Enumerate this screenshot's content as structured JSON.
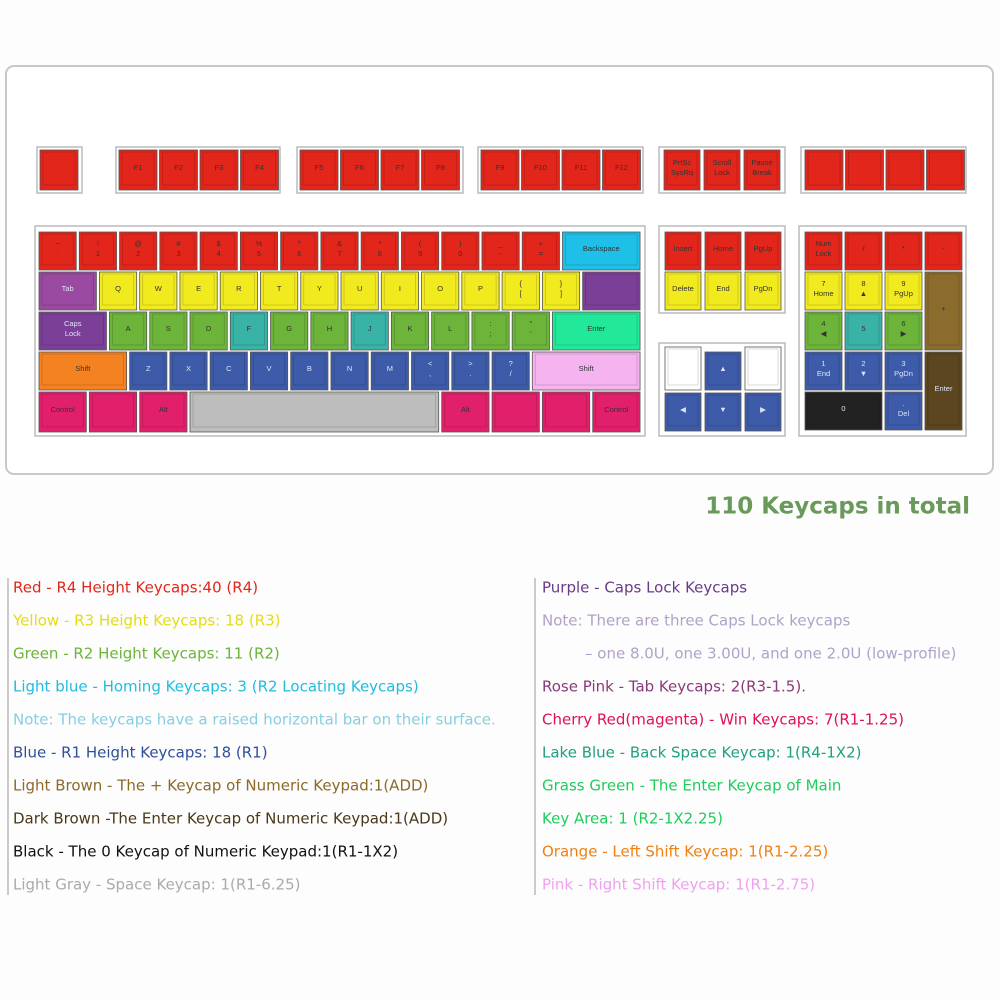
{
  "keyboard": {
    "function_keys": [
      [],
      [
        "F1"
      ],
      [
        "F2"
      ],
      [
        "F3"
      ],
      [
        "F4"
      ],
      [
        "F5"
      ],
      [
        "F6"
      ],
      [
        "F7"
      ],
      [
        "F8"
      ],
      [
        "F9"
      ],
      [
        "F10"
      ],
      [
        "F11"
      ],
      [
        "F12"
      ],
      [
        "PrtSc",
        "SysRq"
      ],
      [
        "Scroll",
        "Lock"
      ],
      [
        "Pause",
        "Break"
      ],
      [],
      [],
      [],
      []
    ],
    "main": [
      [
        [
          "~",
          "`"
        ],
        [
          "!",
          "1"
        ],
        [
          "@",
          "2"
        ],
        [
          "#",
          "3"
        ],
        [
          "$",
          "4"
        ],
        [
          "%",
          "5"
        ],
        [
          "^",
          "6"
        ],
        [
          "&",
          "7"
        ],
        [
          "*",
          "8"
        ],
        [
          "(",
          "9"
        ],
        [
          ")",
          "0"
        ],
        [
          "_",
          "-"
        ],
        [
          "+",
          "="
        ],
        [
          "Backspace"
        ]
      ],
      [
        [
          "Tab"
        ],
        [
          "Q"
        ],
        [
          "W"
        ],
        [
          "E"
        ],
        [
          "R"
        ],
        [
          "T"
        ],
        [
          "Y"
        ],
        [
          "U"
        ],
        [
          "I"
        ],
        [
          "O"
        ],
        [
          "P"
        ],
        [
          "{",
          "["
        ],
        [
          "}",
          "]"
        ],
        []
      ],
      [
        [
          "Caps",
          "Lock"
        ],
        [
          "A"
        ],
        [
          "S"
        ],
        [
          "D"
        ],
        [
          "F"
        ],
        [
          "G"
        ],
        [
          "H"
        ],
        [
          "J"
        ],
        [
          "K"
        ],
        [
          "L"
        ],
        [
          ":",
          ";"
        ],
        [
          "\"",
          "'"
        ],
        [
          "Enter"
        ]
      ],
      [
        [
          "Shift"
        ],
        [
          "Z"
        ],
        [
          "X"
        ],
        [
          "C"
        ],
        [
          "V"
        ],
        [
          "B"
        ],
        [
          "N"
        ],
        [
          "M"
        ],
        [
          "<",
          ","
        ],
        [
          ">",
          "."
        ],
        [
          "?",
          "/"
        ],
        [
          "Shift"
        ]
      ],
      [
        [
          "Control"
        ],
        [],
        [
          "Alt"
        ],
        [],
        [
          "Alt"
        ],
        [],
        [],
        [
          "Control"
        ]
      ]
    ],
    "nav": [
      [
        "Insert"
      ],
      [
        "Home"
      ],
      [
        "PgUp"
      ],
      [
        "Delete"
      ],
      [
        "End"
      ],
      [
        "PgDn"
      ]
    ],
    "arrows": [
      [
        "▲"
      ],
      [
        "◀"
      ],
      [
        "▼"
      ],
      [
        "▶"
      ]
    ],
    "numpad": [
      [
        "Num",
        "Lock"
      ],
      [
        "/"
      ],
      [
        "*"
      ],
      [
        "-"
      ],
      [
        "7",
        "Home"
      ],
      [
        "8",
        "▲"
      ],
      [
        "9",
        "PgUp"
      ],
      [
        "+"
      ],
      [
        "4",
        "◀"
      ],
      [
        "5"
      ],
      [
        "6",
        "▶"
      ],
      [
        "1",
        "End"
      ],
      [
        "2",
        "▼"
      ],
      [
        "3",
        "PgDn"
      ],
      [
        "Enter"
      ],
      [
        "0"
      ],
      [
        ".",
        "Del"
      ]
    ]
  },
  "total": "110 Keycaps in total",
  "legend": {
    "left": [
      {
        "text": "Red - R4 Height Keycaps:40 (R4)",
        "color": "#e3261b"
      },
      {
        "text": "Yellow - R3 Height Keycaps: 18 (R3)",
        "color": "#e6dc10"
      },
      {
        "text": "Green - R2 Height Keycaps: 11 (R2)",
        "color": "#6cb43a"
      },
      {
        "text": "Light blue - Homing Keycaps: 3 (R2 Locating Keycaps)",
        "color": "#20bce0"
      },
      {
        "text": "Note: The keycaps have a raised horizontal bar on their surface.",
        "color": "#86cfe0"
      },
      {
        "text": "Blue - R1 Height Keycaps: 18 (R1)",
        "color": "#2f4f9c"
      },
      {
        "text": "Light Brown - The + Keycap of Numeric Keypad:1(ADD)",
        "color": "#8b6a2a"
      },
      {
        "text": "Dark Brown -The Enter Keycap of Numeric Keypad:1(ADD)",
        "color": "#4a3818"
      },
      {
        "text": "Black - The 0 Keycap of Numeric Keypad:1(R1-1X2)",
        "color": "#111111"
      },
      {
        "text": "Light Gray - Space Keycap: 1(R1-6.25)",
        "color": "#aaaaaa"
      }
    ],
    "right": [
      {
        "text": "Purple - Caps Lock Keycaps",
        "color": "#6a3a8a"
      },
      {
        "text": "Note: There are three Caps Lock keycaps",
        "color": "#b0a2c8"
      },
      {
        "text": "– one 8.0U, one 3.00U, and one 2.0U (low-profile)",
        "color": "#b0a2c8"
      },
      {
        "text": "Rose Pink - Tab Keycaps: 2(R3-1.5).",
        "color": "#8a3a7a"
      },
      {
        "text": "Cherry Red(magenta) - Win Keycaps: 7(R1-1.25)",
        "color": "#e0105a"
      },
      {
        "text": "Lake Blue - Back Space Keycap: 1(R4-1X2)",
        "color": "#20a080"
      },
      {
        "text": "Grass Green - The Enter Keycap of Main",
        "color": "#20cc5c"
      },
      {
        "text": "Key Area: 1 (R2-1X2.25)",
        "color": "#20cc5c"
      },
      {
        "text": "Orange - Left Shift Keycap: 1(R1-2.25)",
        "color": "#f08010"
      },
      {
        "text": "Pink - Right Shift Keycap: 1(R1-2.75)",
        "color": "#f0a0f0"
      }
    ]
  }
}
